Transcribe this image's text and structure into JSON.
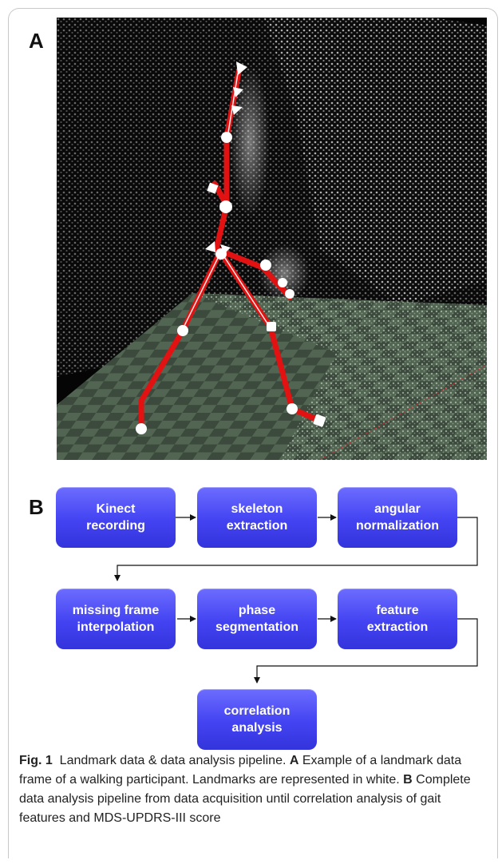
{
  "panel_a": {
    "letter": "A"
  },
  "panel_b": {
    "letter": "B",
    "steps": [
      {
        "line1": "Kinect",
        "line2": "recording"
      },
      {
        "line1": "skeleton",
        "line2": "extraction"
      },
      {
        "line1": "angular",
        "line2": "normalization"
      },
      {
        "line1": "missing frame",
        "line2": "interpolation"
      },
      {
        "line1": "phase",
        "line2": "segmentation"
      },
      {
        "line1": "feature",
        "line2": "extraction"
      },
      {
        "line1": "correlation",
        "line2": "analysis"
      }
    ]
  },
  "caption": {
    "fig_label": "Fig. 1",
    "title": "Landmark data & data analysis pipeline.",
    "ref_a": "A",
    "text_a": "Example of a landmark data frame of a walking participant. Landmarks are represented in white.",
    "ref_b": "B",
    "text_b": "Complete data analysis pipeline from data acquisition until correlation analysis of gait features and MDS-UPDRS-III score"
  },
  "colors": {
    "box_fill": "#4343f2",
    "skeleton": "#e01010",
    "landmark": "#ffffff",
    "background_scene": "#000000"
  }
}
